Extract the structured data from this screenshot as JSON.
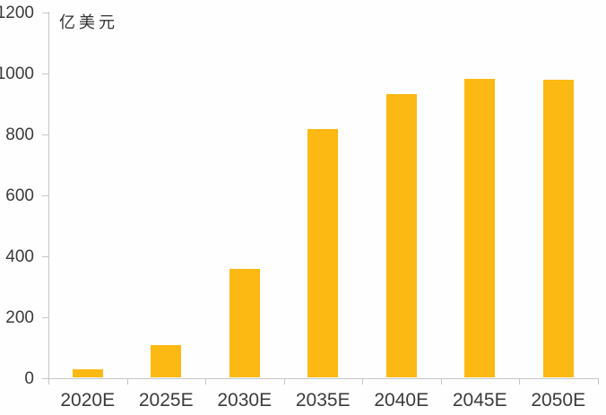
{
  "chart_data": {
    "type": "bar",
    "title": "",
    "unit_label": "亿美元",
    "categories": [
      "2020E",
      "2025E",
      "2030E",
      "2035E",
      "2040E",
      "2045E",
      "2050E"
    ],
    "values": [
      28,
      107,
      358,
      816,
      932,
      982,
      979
    ],
    "xlabel": "",
    "ylabel": "亿美元",
    "ylim": [
      0,
      1200
    ],
    "yticks": [
      0,
      200,
      400,
      600,
      800,
      1000,
      1200
    ],
    "grid": "off",
    "legend": "none",
    "bar_color": "#fcb813",
    "axis_color": "#c6c6c6",
    "text_color": "#3b3b3b"
  }
}
